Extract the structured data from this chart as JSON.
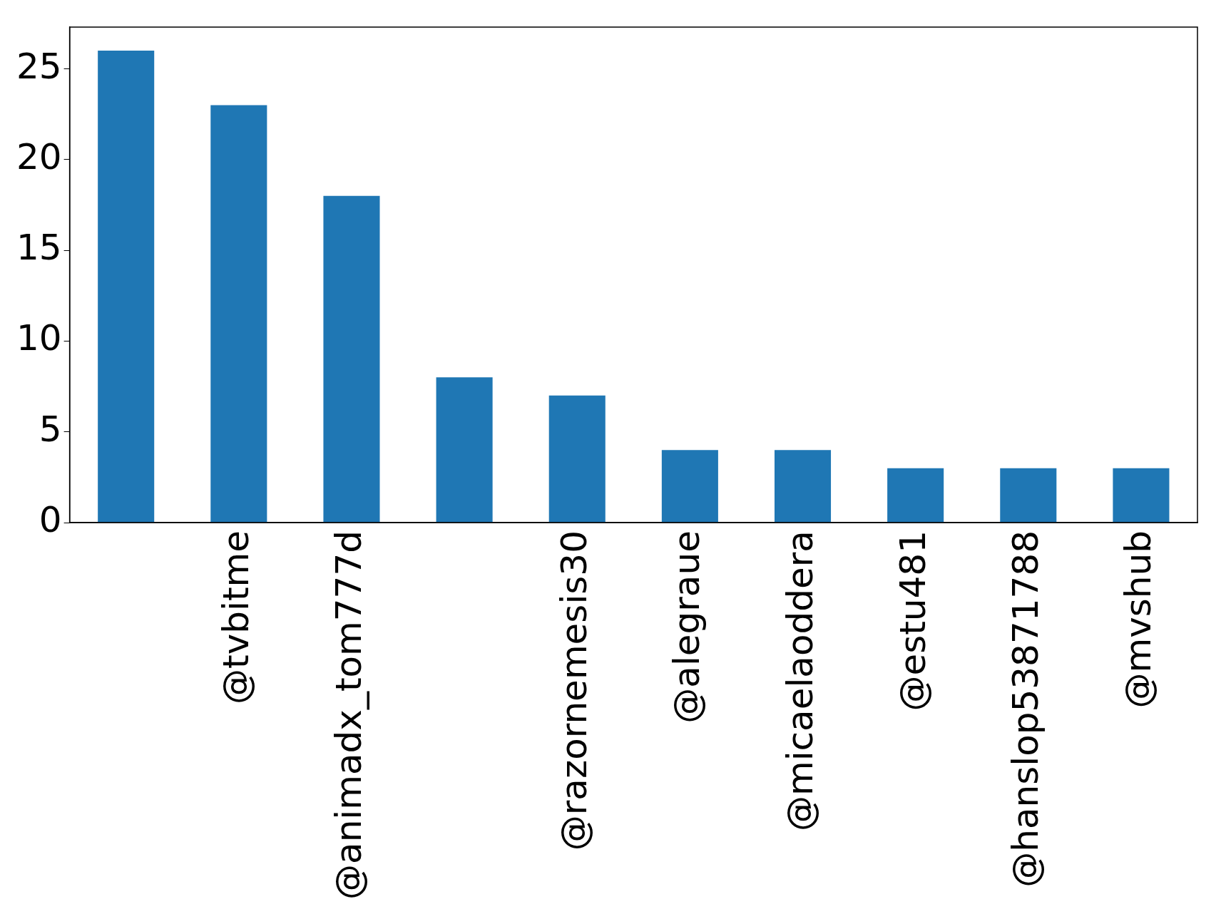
{
  "chart_data": {
    "type": "bar",
    "categories": [
      null,
      "@tvbitme",
      "@animadx_tom777d",
      null,
      "@razornemesis30",
      "@alegraue",
      "@micaelaoddera",
      "@estu481",
      "@hanslop53871788",
      "@mvshub"
    ],
    "values": [
      26,
      23,
      18,
      8,
      7,
      4,
      4,
      3,
      3,
      3
    ],
    "color": "#1f77b4",
    "ylim": [
      0,
      27.3
    ],
    "yticks": [
      0,
      5,
      10,
      15,
      20,
      25
    ],
    "grid": false,
    "legend": false
  }
}
